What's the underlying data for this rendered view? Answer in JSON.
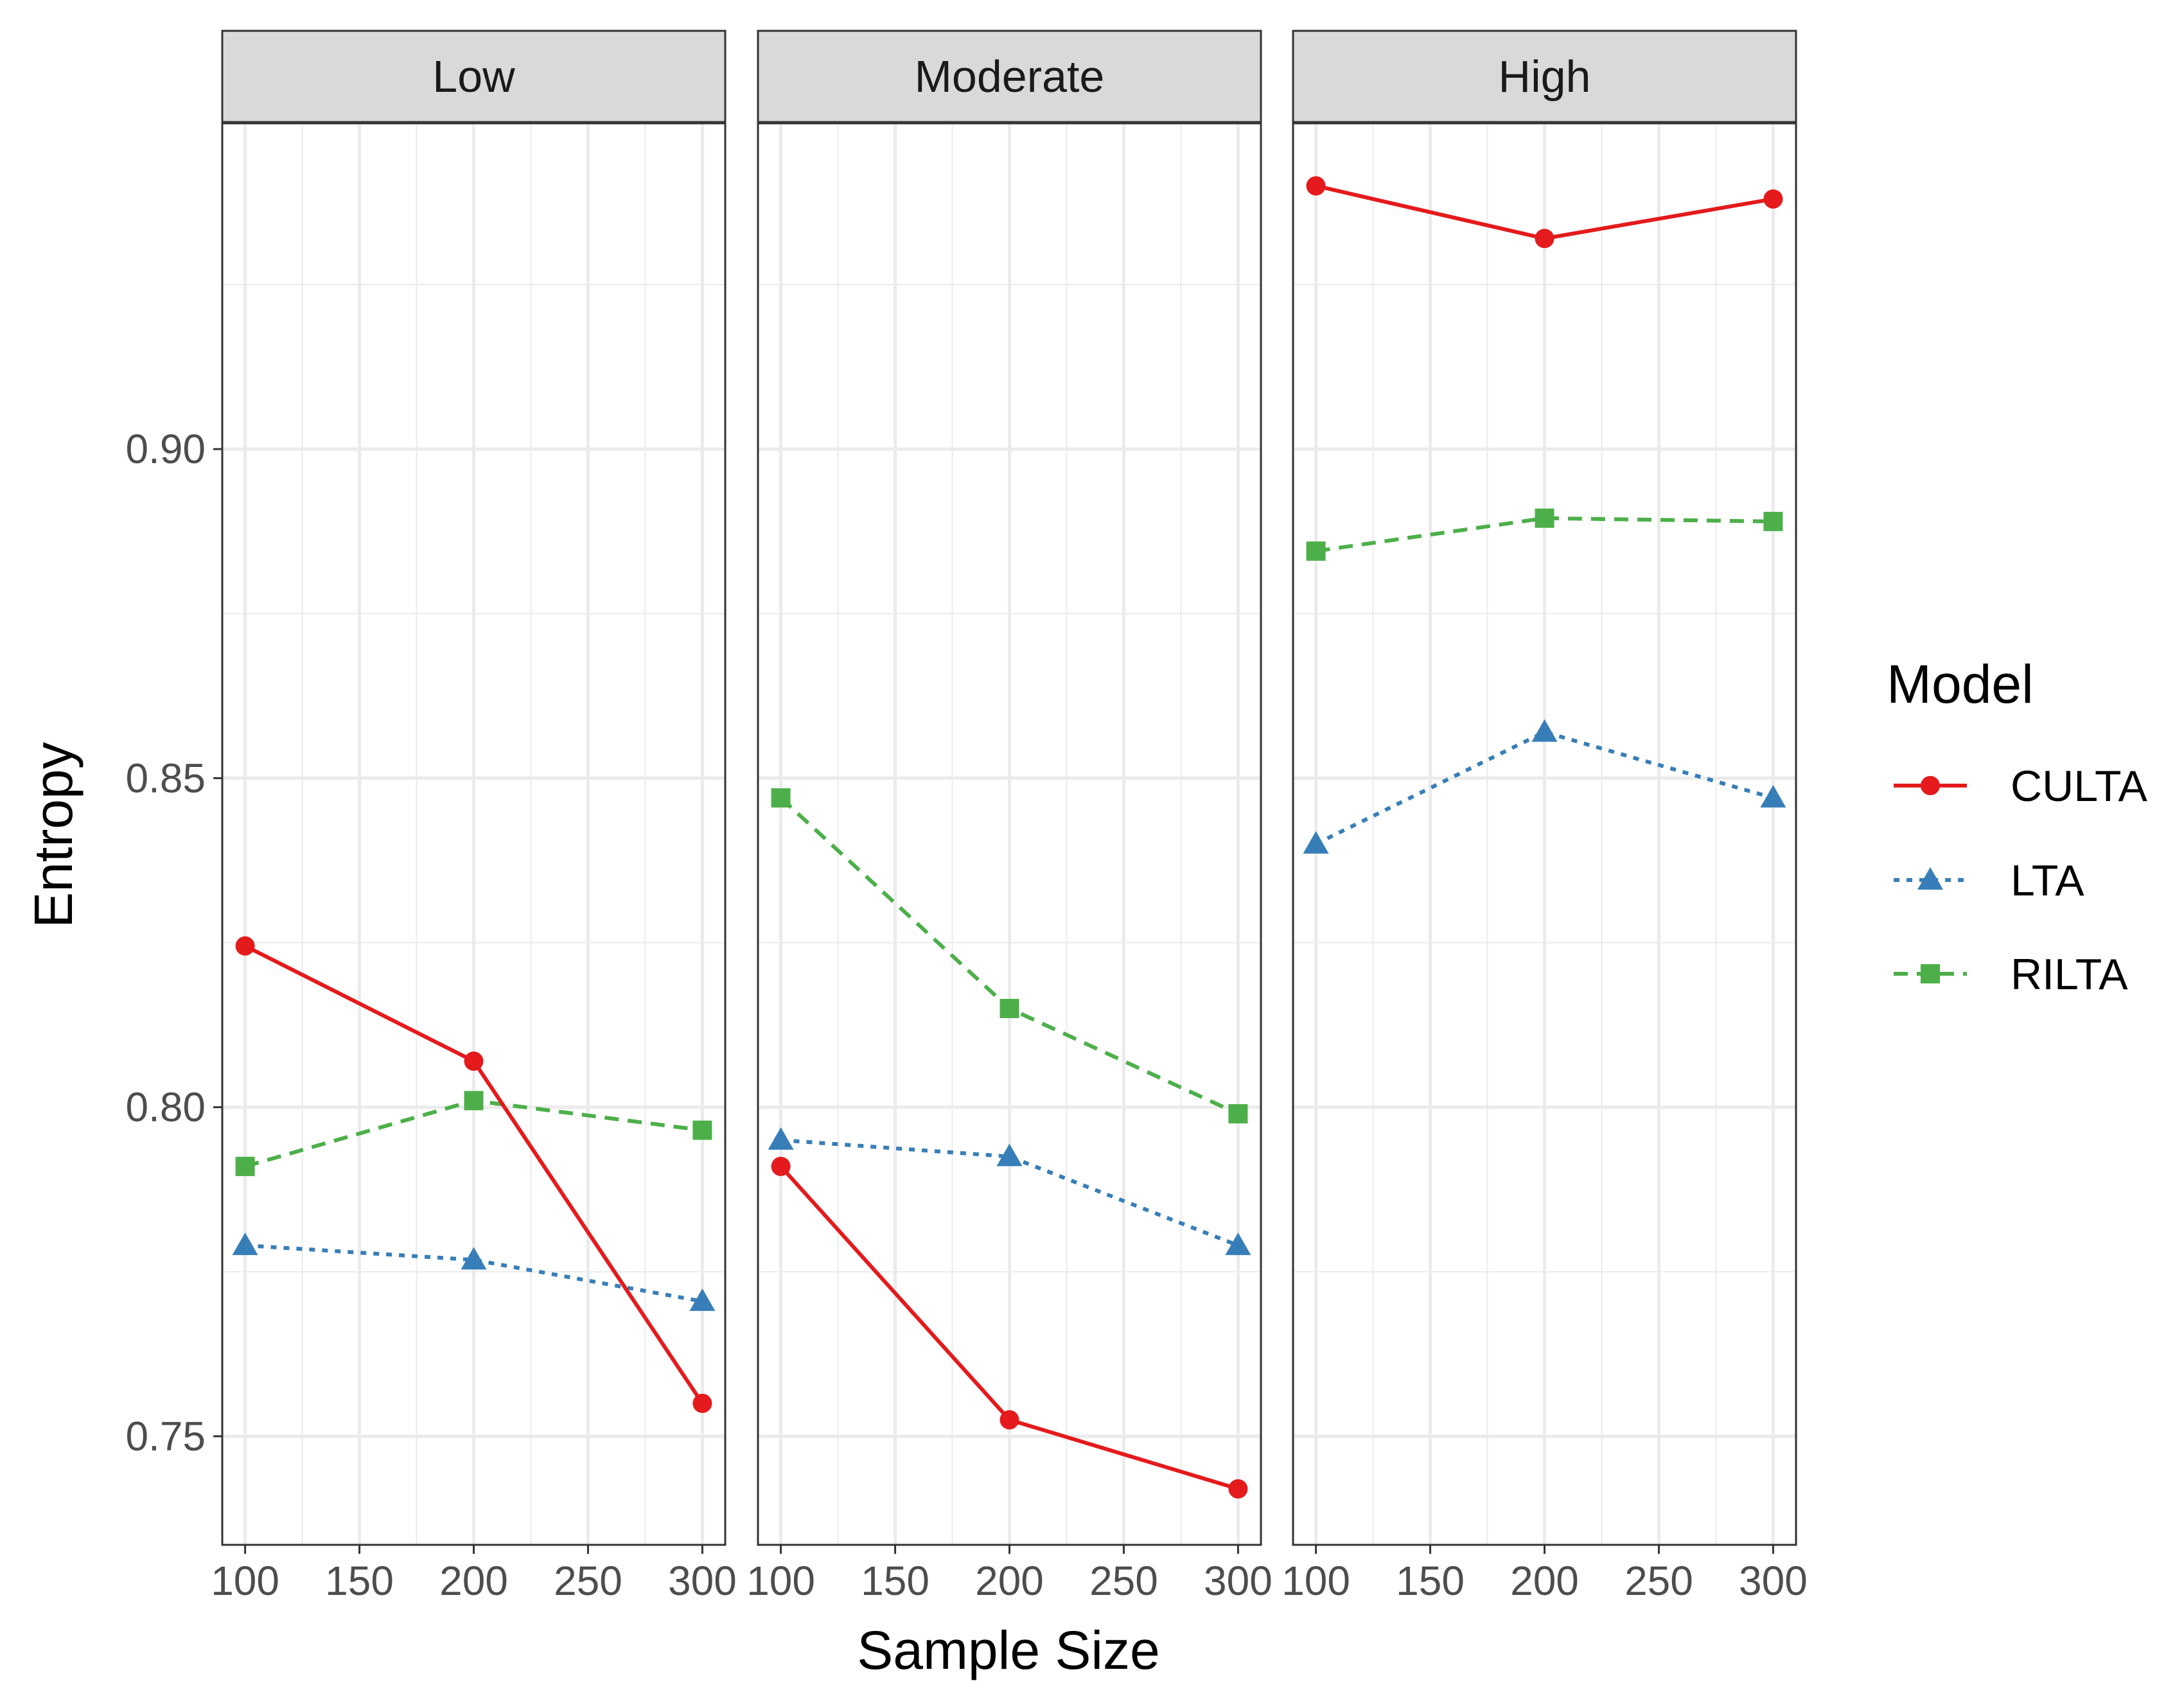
{
  "chart_data": {
    "type": "line",
    "xlabel": "Sample Size",
    "ylabel": "Entropy",
    "x_ticks": [
      100,
      150,
      200,
      250,
      300
    ],
    "xlim": [
      90,
      310
    ],
    "y_ticks": [
      0.75,
      0.8,
      0.85,
      0.9
    ],
    "ylim": [
      0.7335,
      0.9495
    ],
    "grid": true,
    "legend": {
      "title": "Model",
      "position": "right"
    },
    "x": [
      100,
      200,
      300
    ],
    "panels": [
      {
        "label": "Low",
        "series": [
          {
            "name": "CULTA",
            "values": [
              0.8245,
              0.807,
              0.755
            ]
          },
          {
            "name": "LTA",
            "values": [
              0.779,
              0.7768,
              0.7705
            ]
          },
          {
            "name": "RILTA",
            "values": [
              0.791,
              0.801,
              0.7965
            ]
          }
        ]
      },
      {
        "label": "Moderate",
        "series": [
          {
            "name": "CULTA",
            "values": [
              0.791,
              0.7525,
              0.742
            ]
          },
          {
            "name": "LTA",
            "values": [
              0.795,
              0.7925,
              0.779
            ]
          },
          {
            "name": "RILTA",
            "values": [
              0.847,
              0.815,
              0.799
            ]
          }
        ]
      },
      {
        "label": "High",
        "series": [
          {
            "name": "CULTA",
            "values": [
              0.94,
              0.932,
              0.938
            ]
          },
          {
            "name": "LTA",
            "values": [
              0.84,
              0.857,
              0.847
            ]
          },
          {
            "name": "RILTA",
            "values": [
              0.8845,
              0.8895,
              0.889
            ]
          }
        ]
      }
    ],
    "series_styles": [
      {
        "name": "CULTA",
        "color": "#E41A1C",
        "linetype": "solid",
        "shape": "circle"
      },
      {
        "name": "LTA",
        "color": "#377EB8",
        "linetype": "dotted",
        "shape": "triangle"
      },
      {
        "name": "RILTA",
        "color": "#4DAF4A",
        "linetype": "dashed",
        "shape": "square"
      }
    ]
  }
}
